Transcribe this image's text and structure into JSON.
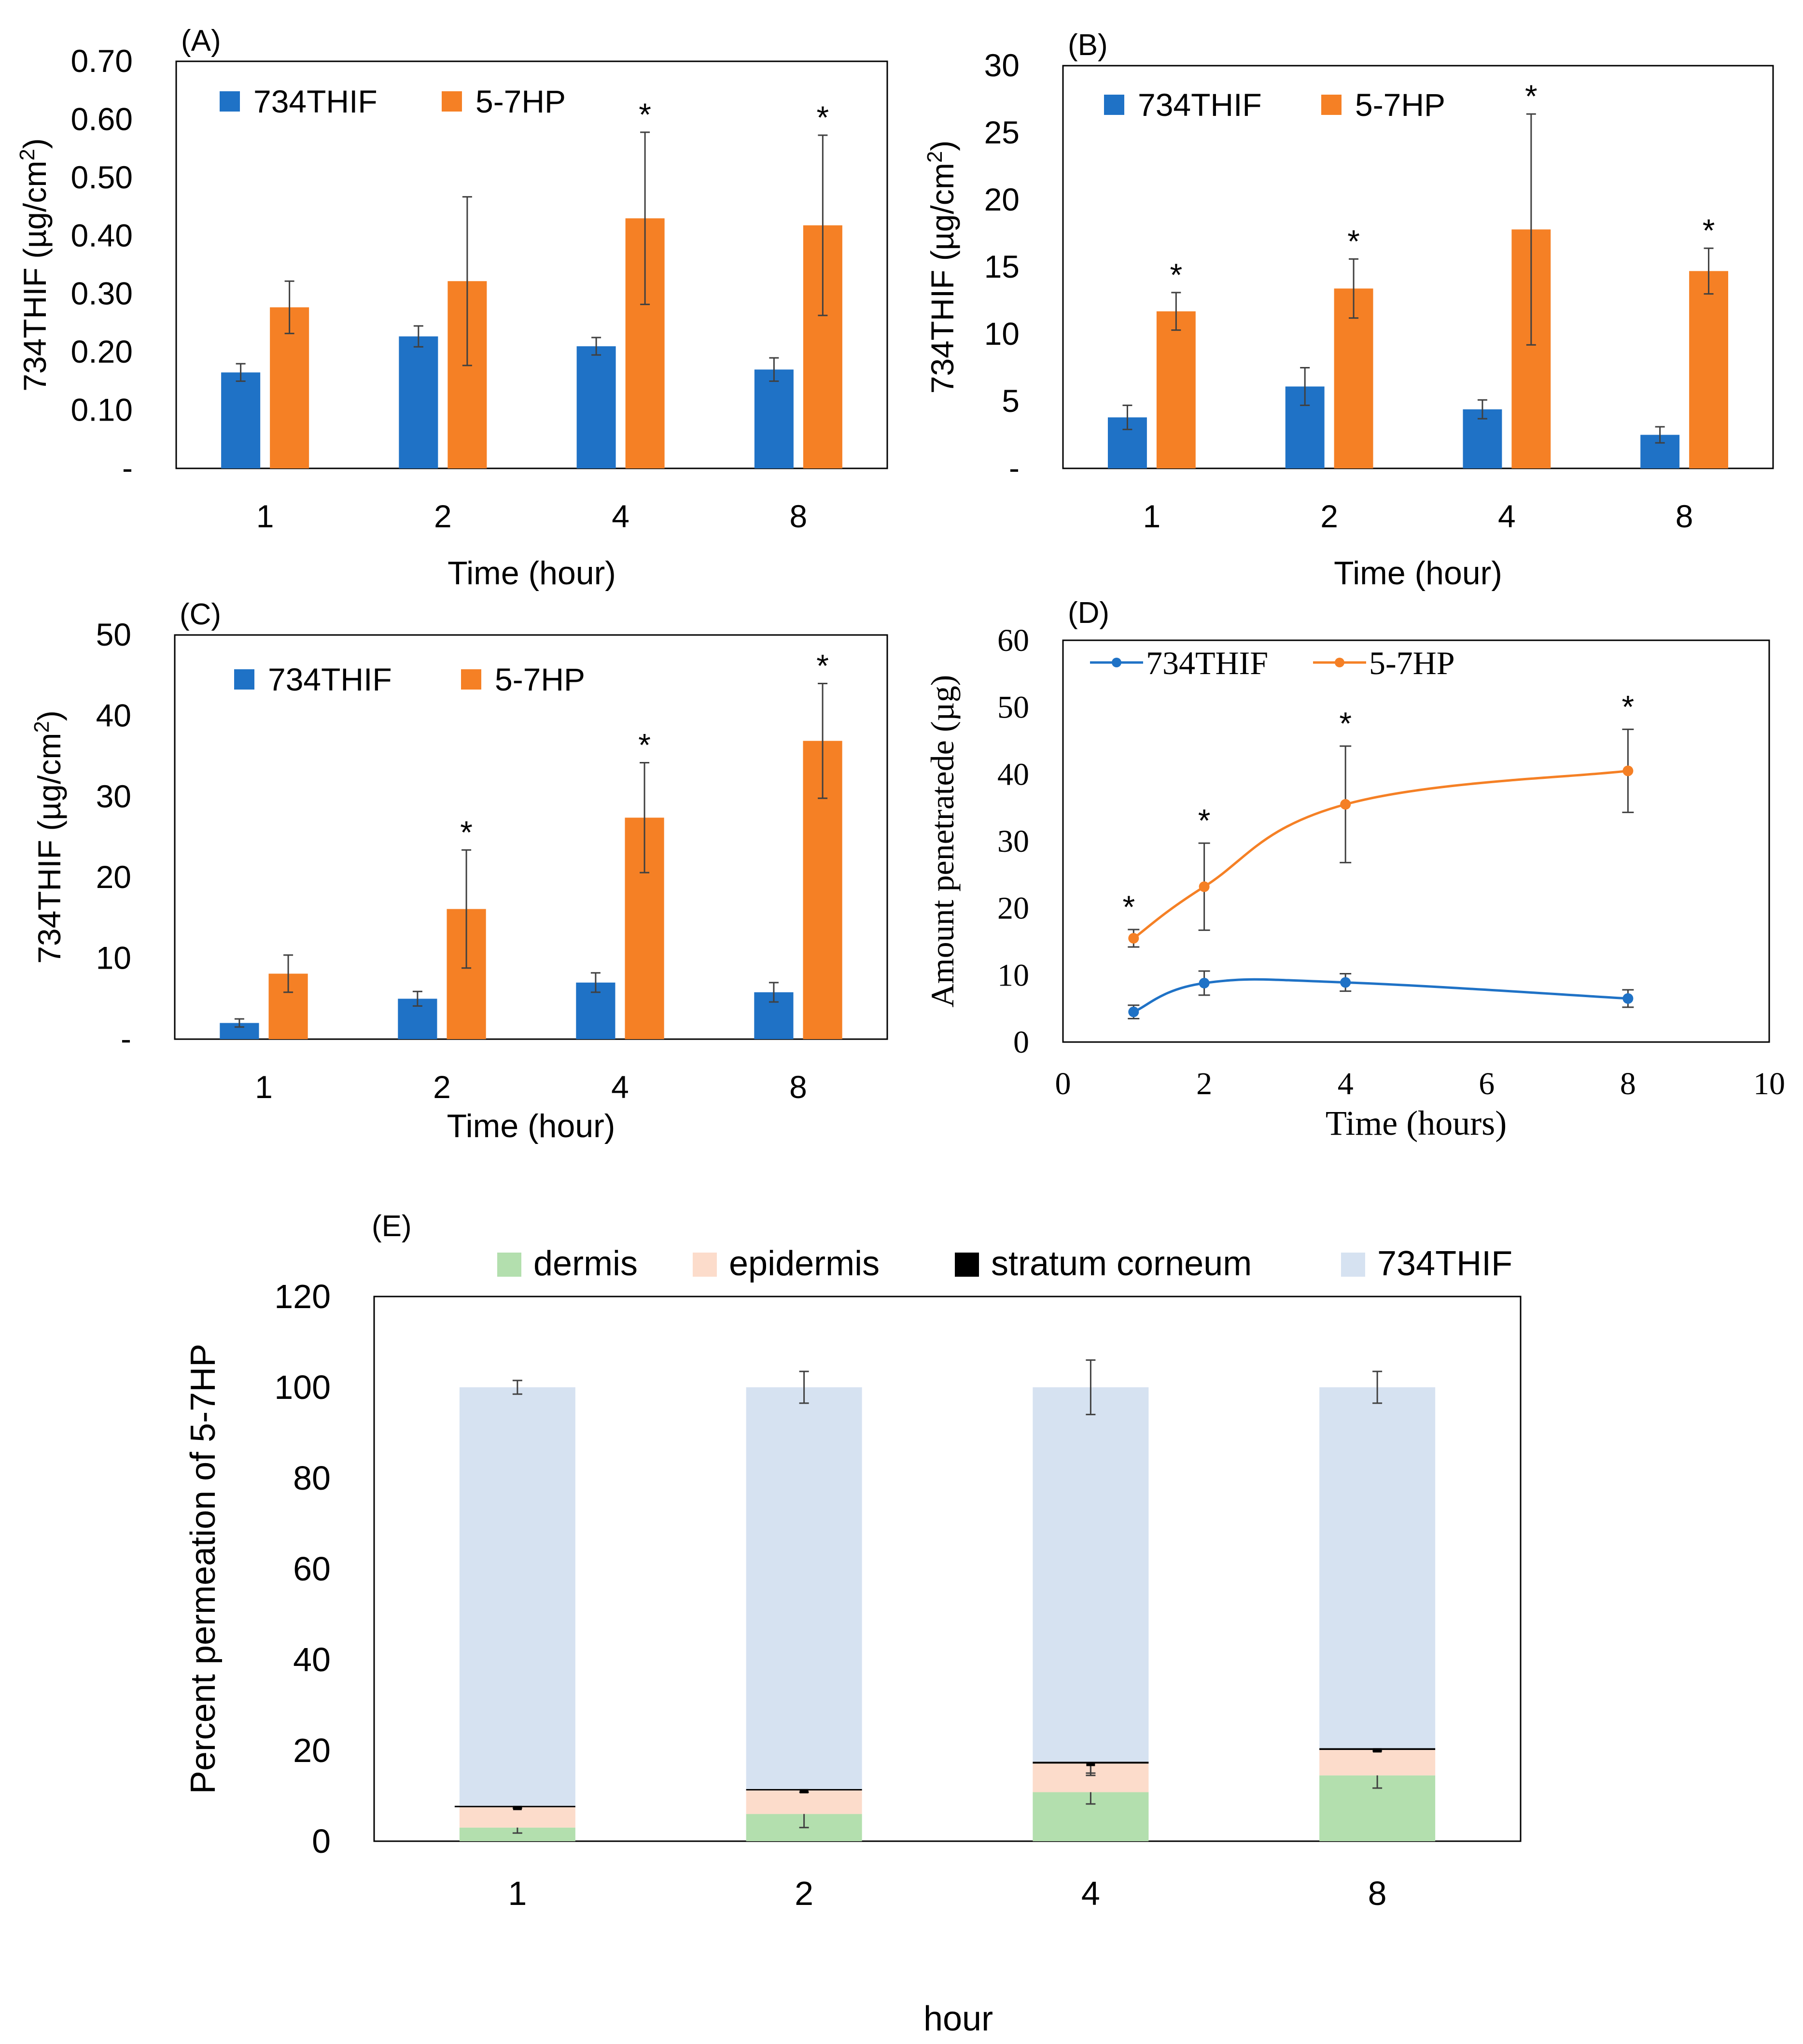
{
  "colors": {
    "series_a": "#1f72c6",
    "series_b": "#f58025",
    "dermis": "#b3dfae",
    "epidermis": "#fcdccb",
    "stratum": "#000000",
    "thif_stack": "#d6e2f1",
    "frame": "#000000",
    "errorbar": "#404040"
  },
  "chart_data": [
    {
      "id": "A",
      "panel_label": "(A)",
      "type": "bar",
      "title": "",
      "xlabel": "Time (hour)",
      "ylabel_main": "734THIF (µg/cm",
      "ylabel_sup": "2",
      "ylabel_close": ")",
      "categories": [
        "1",
        "2",
        "4",
        "8"
      ],
      "ylim": [
        0,
        0.7
      ],
      "yticks": [
        0,
        0.1,
        0.2,
        0.3,
        0.4,
        0.5,
        0.6,
        0.7
      ],
      "ytick_labels": [
        "-",
        "0.10",
        "0.20",
        "0.30",
        "0.40",
        "0.50",
        "0.60",
        "0.70"
      ],
      "legend": [
        "734THIF",
        "5-7HP"
      ],
      "series": [
        {
          "name": "734THIF",
          "values": [
            0.165,
            0.227,
            0.21,
            0.17
          ],
          "errors": [
            0.015,
            0.018,
            0.015,
            0.02
          ]
        },
        {
          "name": "5-7HP",
          "values": [
            0.277,
            0.322,
            0.43,
            0.418
          ],
          "errors": [
            0.045,
            0.145,
            0.148,
            0.155
          ],
          "stars": [
            "",
            "",
            "*",
            "*"
          ]
        }
      ]
    },
    {
      "id": "B",
      "panel_label": "(B)",
      "type": "bar",
      "title": "",
      "xlabel": "Time (hour)",
      "ylabel_main": "734THIF (µg/cm",
      "ylabel_sup": "2",
      "ylabel_close": ")",
      "categories": [
        "1",
        "2",
        "4",
        "8"
      ],
      "ylim": [
        0,
        30
      ],
      "yticks": [
        0,
        5,
        10,
        15,
        20,
        25,
        30
      ],
      "ytick_labels": [
        "-",
        "5",
        "10",
        "15",
        "20",
        "25",
        "30"
      ],
      "legend": [
        "734THIF",
        "5-7HP"
      ],
      "series": [
        {
          "name": "734THIF",
          "values": [
            3.8,
            6.1,
            4.4,
            2.5
          ],
          "errors": [
            0.9,
            1.4,
            0.7,
            0.6
          ]
        },
        {
          "name": "5-7HP",
          "values": [
            11.7,
            13.4,
            17.8,
            14.7
          ],
          "errors": [
            1.4,
            2.2,
            8.6,
            1.7
          ],
          "stars": [
            "*",
            "*",
            "*",
            "*"
          ]
        }
      ]
    },
    {
      "id": "C",
      "panel_label": "(C)",
      "type": "bar",
      "title": "",
      "xlabel": "Time (hour)",
      "ylabel_main": "734THIF (µg/cm",
      "ylabel_sup": "2",
      "ylabel_close": ")",
      "categories": [
        "1",
        "2",
        "4",
        "8"
      ],
      "ylim": [
        0,
        50
      ],
      "yticks": [
        0,
        10,
        20,
        30,
        40,
        50
      ],
      "ytick_labels": [
        "-",
        "10",
        "20",
        "30",
        "40",
        "50"
      ],
      "legend": [
        "734THIF",
        "5-7HP"
      ],
      "series": [
        {
          "name": "734THIF",
          "values": [
            2.0,
            5.0,
            7.0,
            5.8
          ],
          "errors": [
            0.5,
            0.9,
            1.2,
            1.2
          ]
        },
        {
          "name": "5-7HP",
          "values": [
            8.1,
            16.1,
            27.4,
            36.9
          ],
          "errors": [
            2.3,
            7.3,
            6.8,
            7.1
          ],
          "stars": [
            "",
            "*",
            "*",
            "*"
          ]
        }
      ]
    },
    {
      "id": "D",
      "panel_label": "(D)",
      "type": "line",
      "title": "",
      "xlabel": "Time (hours)",
      "ylabel": "Amount penetratede (µg)",
      "xlim": [
        0,
        10
      ],
      "ylim": [
        0,
        60
      ],
      "xticks": [
        0,
        2,
        4,
        6,
        8,
        10
      ],
      "yticks": [
        0,
        10,
        20,
        30,
        40,
        50,
        60
      ],
      "xtick_labels": [
        "0",
        "2",
        "4",
        "6",
        "8",
        "10"
      ],
      "ytick_labels": [
        "0",
        "10",
        "20",
        "30",
        "40",
        "50",
        "60"
      ],
      "legend": [
        "734THIF",
        "5-7HP"
      ],
      "series": [
        {
          "name": "734THIF",
          "x": [
            1,
            2,
            4,
            8
          ],
          "y": [
            4.5,
            8.8,
            8.9,
            6.5
          ],
          "errors": [
            1.0,
            1.8,
            1.3,
            1.3
          ]
        },
        {
          "name": "5-7HP",
          "x": [
            1,
            2,
            4,
            8
          ],
          "y": [
            15.5,
            23.2,
            35.5,
            40.5
          ],
          "errors": [
            1.3,
            6.5,
            8.7,
            6.2
          ],
          "stars": [
            "*",
            "*",
            "*",
            "*"
          ]
        }
      ]
    },
    {
      "id": "E",
      "panel_label": "(E)",
      "type": "bar",
      "stacked": true,
      "title": "",
      "xlabel": "hour",
      "ylabel": "Percent permeation of 5-7HP",
      "categories": [
        "1",
        "2",
        "4",
        "8"
      ],
      "ylim": [
        0,
        120
      ],
      "yticks": [
        0,
        20,
        40,
        60,
        80,
        100,
        120
      ],
      "ytick_labels": [
        "0",
        "20",
        "40",
        "60",
        "80",
        "100",
        "120"
      ],
      "legend": [
        "dermis",
        "epidermis",
        "stratum corneum",
        "734THIF"
      ],
      "series": [
        {
          "name": "dermis",
          "values": [
            3.0,
            6.0,
            10.8,
            14.5
          ],
          "errors": [
            1.2,
            3.0,
            2.6,
            2.8
          ]
        },
        {
          "name": "epidermis",
          "values": [
            4.5,
            5.2,
            6.3,
            5.6
          ],
          "errors": [
            0,
            0,
            2.6,
            0
          ]
        },
        {
          "name": "stratum corneum",
          "values": [
            0.3,
            0.3,
            0.4,
            0.4
          ],
          "errors": [
            0.5,
            0.7,
            2.5,
            0.6
          ]
        },
        {
          "name": "734THIF",
          "values": [
            92.2,
            88.5,
            82.5,
            79.5
          ],
          "errors": [
            1.5,
            3.5,
            6.0,
            3.5
          ]
        }
      ]
    }
  ]
}
